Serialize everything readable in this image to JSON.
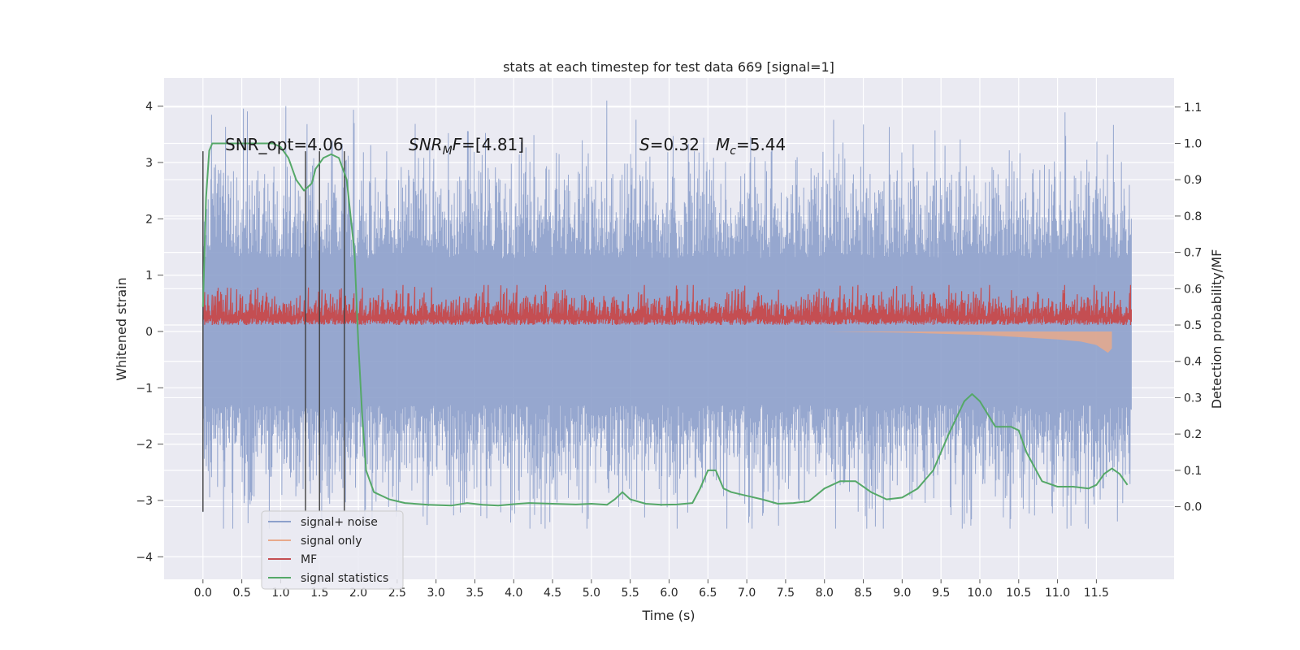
{
  "chart_data": {
    "type": "line",
    "title": "stats at each timestep for test data 669 [signal=1]",
    "xlabel": "Time (s)",
    "ylabel": "Whitened strain",
    "y2label": "Detection probability/MF",
    "xlim": [
      -0.5,
      12.5
    ],
    "ylim": [
      -4.4,
      4.5
    ],
    "y2lim": [
      -0.2,
      1.18
    ],
    "grid": true,
    "xticks": [
      "0.0",
      "0.5",
      "1.0",
      "1.5",
      "2.0",
      "2.5",
      "3.0",
      "3.5",
      "4.0",
      "4.5",
      "5.0",
      "5.5",
      "6.0",
      "6.5",
      "7.0",
      "7.5",
      "8.0",
      "8.5",
      "9.0",
      "9.5",
      "10.0",
      "10.5",
      "11.0",
      "11.5"
    ],
    "yticks": [
      "4",
      "3",
      "2",
      "1",
      "0",
      "−1",
      "−2",
      "−3",
      "−4"
    ],
    "y2ticks": [
      "1.1",
      "1.0",
      "0.9",
      "0.8",
      "0.7",
      "0.6",
      "0.5",
      "0.4",
      "0.3",
      "0.2",
      "0.1",
      "0.0"
    ],
    "annotations": {
      "snr_opt": "SNR_opt=4.06",
      "snr_mf_var": "SNR",
      "snr_mf_sub": "M",
      "snr_mf_tail": "F",
      "snr_mf_value": "=[4.81]",
      "s_var": "S",
      "s_value": "=0.32",
      "mc_var": "M",
      "mc_sub": "c",
      "mc_value": "=5.44"
    },
    "vertical_lines_x": [
      0.0,
      1.32,
      1.5,
      1.82
    ],
    "legend": {
      "position": "lower-left",
      "entries": [
        "signal+ noise",
        "signal only",
        "MF",
        "signal statistics"
      ]
    },
    "colors": {
      "signal_noise": "#8da0cb",
      "signal_only": "#e8a98b",
      "mf": "#c44e52",
      "signal_statistics": "#55a868",
      "vlines": "#404040",
      "background": "#eaeaf2"
    },
    "series": [
      {
        "name": "signal statistics",
        "axis": "right",
        "x": [
          0.0,
          0.04,
          0.08,
          0.12,
          0.2,
          0.3,
          0.5,
          0.7,
          0.9,
          1.0,
          1.1,
          1.2,
          1.3,
          1.4,
          1.45,
          1.55,
          1.65,
          1.75,
          1.85,
          1.95,
          2.0,
          2.05,
          2.1,
          2.2,
          2.4,
          2.6,
          2.9,
          3.2,
          3.4,
          3.6,
          3.8,
          4.0,
          4.2,
          4.5,
          4.8,
          5.0,
          5.2,
          5.3,
          5.4,
          5.5,
          5.7,
          5.9,
          6.1,
          6.3,
          6.4,
          6.5,
          6.6,
          6.7,
          6.8,
          7.0,
          7.2,
          7.4,
          7.6,
          7.8,
          8.0,
          8.2,
          8.4,
          8.6,
          8.8,
          9.0,
          9.2,
          9.4,
          9.6,
          9.8,
          9.9,
          10.0,
          10.2,
          10.4,
          10.5,
          10.6,
          10.8,
          11.0,
          11.2,
          11.4,
          11.5,
          11.6,
          11.7,
          11.8,
          11.9
        ],
        "values": [
          0.55,
          0.85,
          0.98,
          1.0,
          1.0,
          1.0,
          1.0,
          1.0,
          1.0,
          0.99,
          0.96,
          0.9,
          0.87,
          0.89,
          0.93,
          0.96,
          0.97,
          0.96,
          0.9,
          0.7,
          0.45,
          0.25,
          0.1,
          0.04,
          0.02,
          0.01,
          0.005,
          0.003,
          0.01,
          0.005,
          0.003,
          0.007,
          0.01,
          0.008,
          0.006,
          0.008,
          0.005,
          0.02,
          0.04,
          0.02,
          0.008,
          0.005,
          0.006,
          0.01,
          0.05,
          0.1,
          0.1,
          0.05,
          0.04,
          0.03,
          0.02,
          0.008,
          0.01,
          0.015,
          0.05,
          0.07,
          0.07,
          0.04,
          0.02,
          0.025,
          0.05,
          0.1,
          0.2,
          0.29,
          0.31,
          0.29,
          0.22,
          0.22,
          0.21,
          0.15,
          0.07,
          0.055,
          0.055,
          0.05,
          0.06,
          0.09,
          0.105,
          0.09,
          0.06
        ]
      },
      {
        "name": "signal+ noise",
        "axis": "left",
        "description_range": [
          -3.5,
          4.1
        ]
      },
      {
        "name": "MF",
        "axis": "right",
        "value_range": [
          0.5,
          0.61
        ]
      },
      {
        "name": "signal only",
        "axis": "left",
        "envelope": {
          "x": [
            8.0,
            9.0,
            10.0,
            10.5,
            11.0,
            11.3,
            11.5,
            11.65,
            11.7
          ],
          "lower": [
            0.0,
            -0.02,
            -0.06,
            -0.1,
            -0.14,
            -0.18,
            -0.24,
            -0.38,
            -0.3
          ]
        }
      }
    ]
  }
}
